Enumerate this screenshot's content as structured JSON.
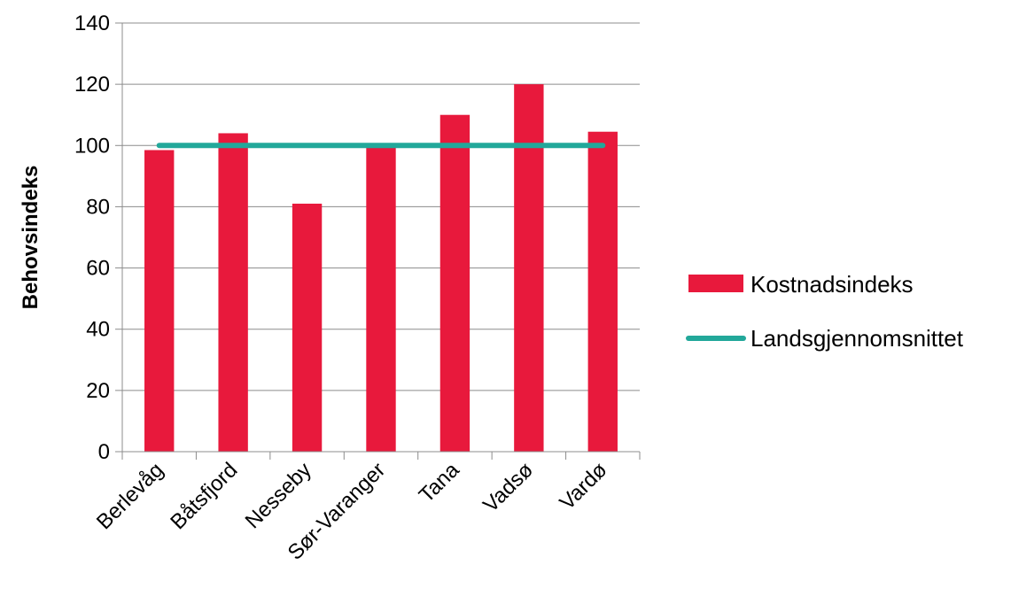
{
  "chart_data": {
    "type": "bar",
    "title": "",
    "xlabel": "",
    "ylabel": "Behovsindeks",
    "ylim": [
      0,
      140
    ],
    "yticks": [
      0,
      20,
      40,
      60,
      80,
      100,
      120,
      140
    ],
    "grid": true,
    "legend_position": "right",
    "categories": [
      "Berlevåg",
      "Båtsfjord",
      "Nesseby",
      "Sør-Varanger",
      "Tana",
      "Vadsø",
      "Vardø"
    ],
    "series": [
      {
        "name": "Kostnadsindeks",
        "type": "bar",
        "color": "#E8193C",
        "values": [
          98.5,
          104,
          81,
          100,
          110,
          120,
          104.5
        ]
      },
      {
        "name": "Landsgjennomsnittet",
        "type": "line",
        "color": "#22A89A",
        "values": [
          100,
          100,
          100,
          100,
          100,
          100,
          100
        ]
      }
    ]
  }
}
